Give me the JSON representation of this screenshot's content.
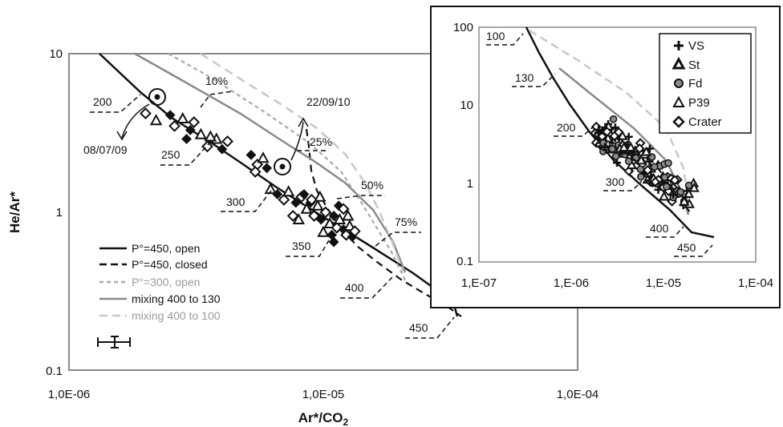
{
  "chart_data": [
    {
      "type": "line",
      "xlabel": "Ar*/CO2",
      "ylabel": "He/Ar*",
      "xscale": "log",
      "yscale": "log",
      "xlim": [
        1e-06,
        0.0001
      ],
      "ylim": [
        0.1,
        10
      ],
      "x_ticks": [
        "1,0E-06",
        "1,0E-05",
        "1,0E-04"
      ],
      "y_ticks": [
        "10",
        "1",
        "0.1"
      ],
      "legend_position": "lower-left",
      "series": [
        {
          "name": "P°=450, open",
          "style": "solid",
          "color": "#111111",
          "points": [
            [
              1.3e-06,
              10
            ],
            [
              2e-06,
              5.6
            ],
            [
              5e-06,
              1.9
            ],
            [
              1e-05,
              0.95
            ],
            [
              2e-05,
              0.42
            ],
            [
              3.2e-05,
              0.23
            ]
          ]
        },
        {
          "name": "P°=450, closed",
          "style": "dashed",
          "color": "#111111",
          "points": [
            [
              7.5e-06,
              3.1
            ],
            [
              8.5e-06,
              1.8
            ],
            [
              1.2e-05,
              1.0
            ],
            [
              1.8e-05,
              0.55
            ],
            [
              2.5e-05,
              0.35
            ],
            [
              3.2e-05,
              0.23
            ]
          ]
        },
        {
          "name": "P°=300, open",
          "style": "dotted",
          "color": "#aaaaaa",
          "points": [
            [
              2.5e-06,
              10
            ],
            [
              6e-06,
              4.2
            ],
            [
              1.2e-05,
              1.8
            ],
            [
              1.7e-05,
              0.9
            ],
            [
              2.2e-05,
              0.4
            ]
          ]
        },
        {
          "name": "mixing 400 to 130",
          "style": "solid",
          "color": "#8a8a8a",
          "points": [
            [
              1.8e-06,
              10
            ],
            [
              5e-06,
              3.6
            ],
            [
              1.2e-05,
              1.3
            ],
            [
              1.8e-05,
              0.65
            ],
            [
              2.2e-05,
              0.4
            ]
          ]
        },
        {
          "name": "mixing 400 to 100",
          "style": "dashed",
          "color": "#c8c8c8",
          "points": [
            [
              3.3e-06,
              10
            ],
            [
              8e-06,
              4
            ],
            [
              1.5e-05,
              1.6
            ],
            [
              1.9e-05,
              0.8
            ],
            [
              2.2e-05,
              0.4
            ]
          ]
        }
      ],
      "markers": [
        {
          "label": "08/07/09",
          "x": 2.2e-06,
          "y": 5.3
        },
        {
          "label": "22/09/10",
          "x": 6.8e-06,
          "y": 1.9
        }
      ],
      "scatter": [
        [
          2e-06,
          4.2
        ],
        [
          2.2e-06,
          3.8
        ],
        [
          2.5e-06,
          4.1
        ],
        [
          2.6e-06,
          3.5
        ],
        [
          2.8e-06,
          3.9
        ],
        [
          3e-06,
          3.3
        ],
        [
          3.1e-06,
          3.7
        ],
        [
          3.3e-06,
          3.1
        ],
        [
          2.9e-06,
          2.9
        ],
        [
          3.5e-06,
          2.6
        ],
        [
          3.8e-06,
          2.9
        ],
        [
          4e-06,
          2.5
        ],
        [
          4.2e-06,
          2.8
        ],
        [
          3.6e-06,
          3.0
        ],
        [
          5.2e-06,
          2.3
        ],
        [
          5.5e-06,
          2.0
        ],
        [
          5.8e-06,
          2.2
        ],
        [
          6e-06,
          1.9
        ],
        [
          5.4e-06,
          1.8
        ],
        [
          6.2e-06,
          1.4
        ],
        [
          6.6e-06,
          1.3
        ],
        [
          7e-06,
          1.2
        ],
        [
          7.3e-06,
          1.35
        ],
        [
          7.8e-06,
          1.15
        ],
        [
          8.2e-06,
          1.25
        ],
        [
          8.6e-06,
          1.05
        ],
        [
          8.9e-06,
          1.15
        ],
        [
          9.2e-06,
          0.95
        ],
        [
          9.5e-06,
          1.1
        ],
        [
          9.8e-06,
          0.9
        ],
        [
          1.02e-05,
          1.0
        ],
        [
          1.06e-05,
          0.85
        ],
        [
          1.1e-05,
          0.95
        ],
        [
          1.13e-05,
          0.8
        ],
        [
          1.16e-05,
          0.9
        ],
        [
          1.2e-05,
          0.78
        ],
        [
          1.23e-05,
          0.72
        ],
        [
          1.27e-05,
          0.82
        ],
        [
          1.3e-05,
          0.7
        ],
        [
          1.33e-05,
          0.76
        ],
        [
          1e-05,
          0.75
        ],
        [
          1.08e-05,
          0.72
        ],
        [
          7.6e-06,
          0.95
        ],
        [
          8e-06,
          0.9
        ],
        [
          8.4e-06,
          1.3
        ],
        [
          9e-06,
          1.2
        ],
        [
          9.7e-06,
          1.25
        ],
        [
          1.15e-05,
          1.1
        ],
        [
          1.2e-05,
          1.05
        ],
        [
          1.25e-05,
          0.95
        ],
        [
          1.1e-05,
          0.65
        ]
      ],
      "annotations": [
        {
          "text": "200",
          "x": 1.7e-06,
          "y": 5.0
        },
        {
          "text": "10%",
          "x": 4.2e-06,
          "y": 6.2
        },
        {
          "text": "250",
          "x": 3.1e-06,
          "y": 2.4
        },
        {
          "text": "25%",
          "x": 9.6e-06,
          "y": 2.6
        },
        {
          "text": "300",
          "x": 4.5e-06,
          "y": 1.15
        },
        {
          "text": "50%",
          "x": 1.45e-05,
          "y": 1.35
        },
        {
          "text": "350",
          "x": 7.5e-06,
          "y": 0.62
        },
        {
          "text": "75%",
          "x": 2.15e-05,
          "y": 0.8
        },
        {
          "text": "400",
          "x": 1.2e-05,
          "y": 0.34
        },
        {
          "text": "450",
          "x": 2.1e-05,
          "y": 0.18
        }
      ]
    },
    {
      "type": "scatter",
      "xscale": "log",
      "yscale": "log",
      "xlim": [
        1e-07,
        0.0001
      ],
      "ylim": [
        0.1,
        100
      ],
      "x_ticks": [
        "1,E-07",
        "1,E-06",
        "1,E-05",
        "1,E-04"
      ],
      "y_ticks": [
        "100",
        "10",
        "1",
        "0.1"
      ],
      "legend_position": "top-right",
      "legend": [
        {
          "name": "VS",
          "marker": "plus"
        },
        {
          "name": "St",
          "marker": "triangle"
        },
        {
          "name": "Fd",
          "marker": "circle"
        },
        {
          "name": "P39",
          "marker": "triangle-open"
        },
        {
          "name": "Crater",
          "marker": "diamond"
        }
      ],
      "annotations": [
        "100",
        "130",
        "200",
        "300",
        "400",
        "450"
      ]
    }
  ],
  "main": {
    "x_ticks": [
      "1,0E-06",
      "1,0E-05",
      "1,0E-04"
    ],
    "y_ticks": [
      "10",
      "1",
      "0.1"
    ],
    "xlabel": "Ar*/CO",
    "xlabel_sub": "2",
    "ylabel": "He/Ar*",
    "date1": "08/07/09",
    "date2": "22/09/10",
    "legend": [
      "P°=450, open",
      "P°=450, closed",
      "P°=300, open",
      "mixing 400 to 130",
      "mixing 400 to 100"
    ],
    "labels": [
      "200",
      "10%",
      "250",
      "25%",
      "300",
      "50%",
      "350",
      "75%",
      "400",
      "450"
    ]
  },
  "inset": {
    "x_ticks": [
      "1,E-07",
      "1,E-06",
      "1,E-05",
      "1,E-04"
    ],
    "y_ticks": [
      "100",
      "10",
      "1",
      "0.1"
    ],
    "legend": [
      "VS",
      "St",
      "Fd",
      "P39",
      "Crater"
    ],
    "labels": [
      "100",
      "130",
      "200",
      "300",
      "400",
      "450"
    ]
  },
  "colors": {
    "frame": "#8a8a8a",
    "black": "#111111",
    "gray": "#8a8a8a",
    "light": "#c8c8c8"
  }
}
